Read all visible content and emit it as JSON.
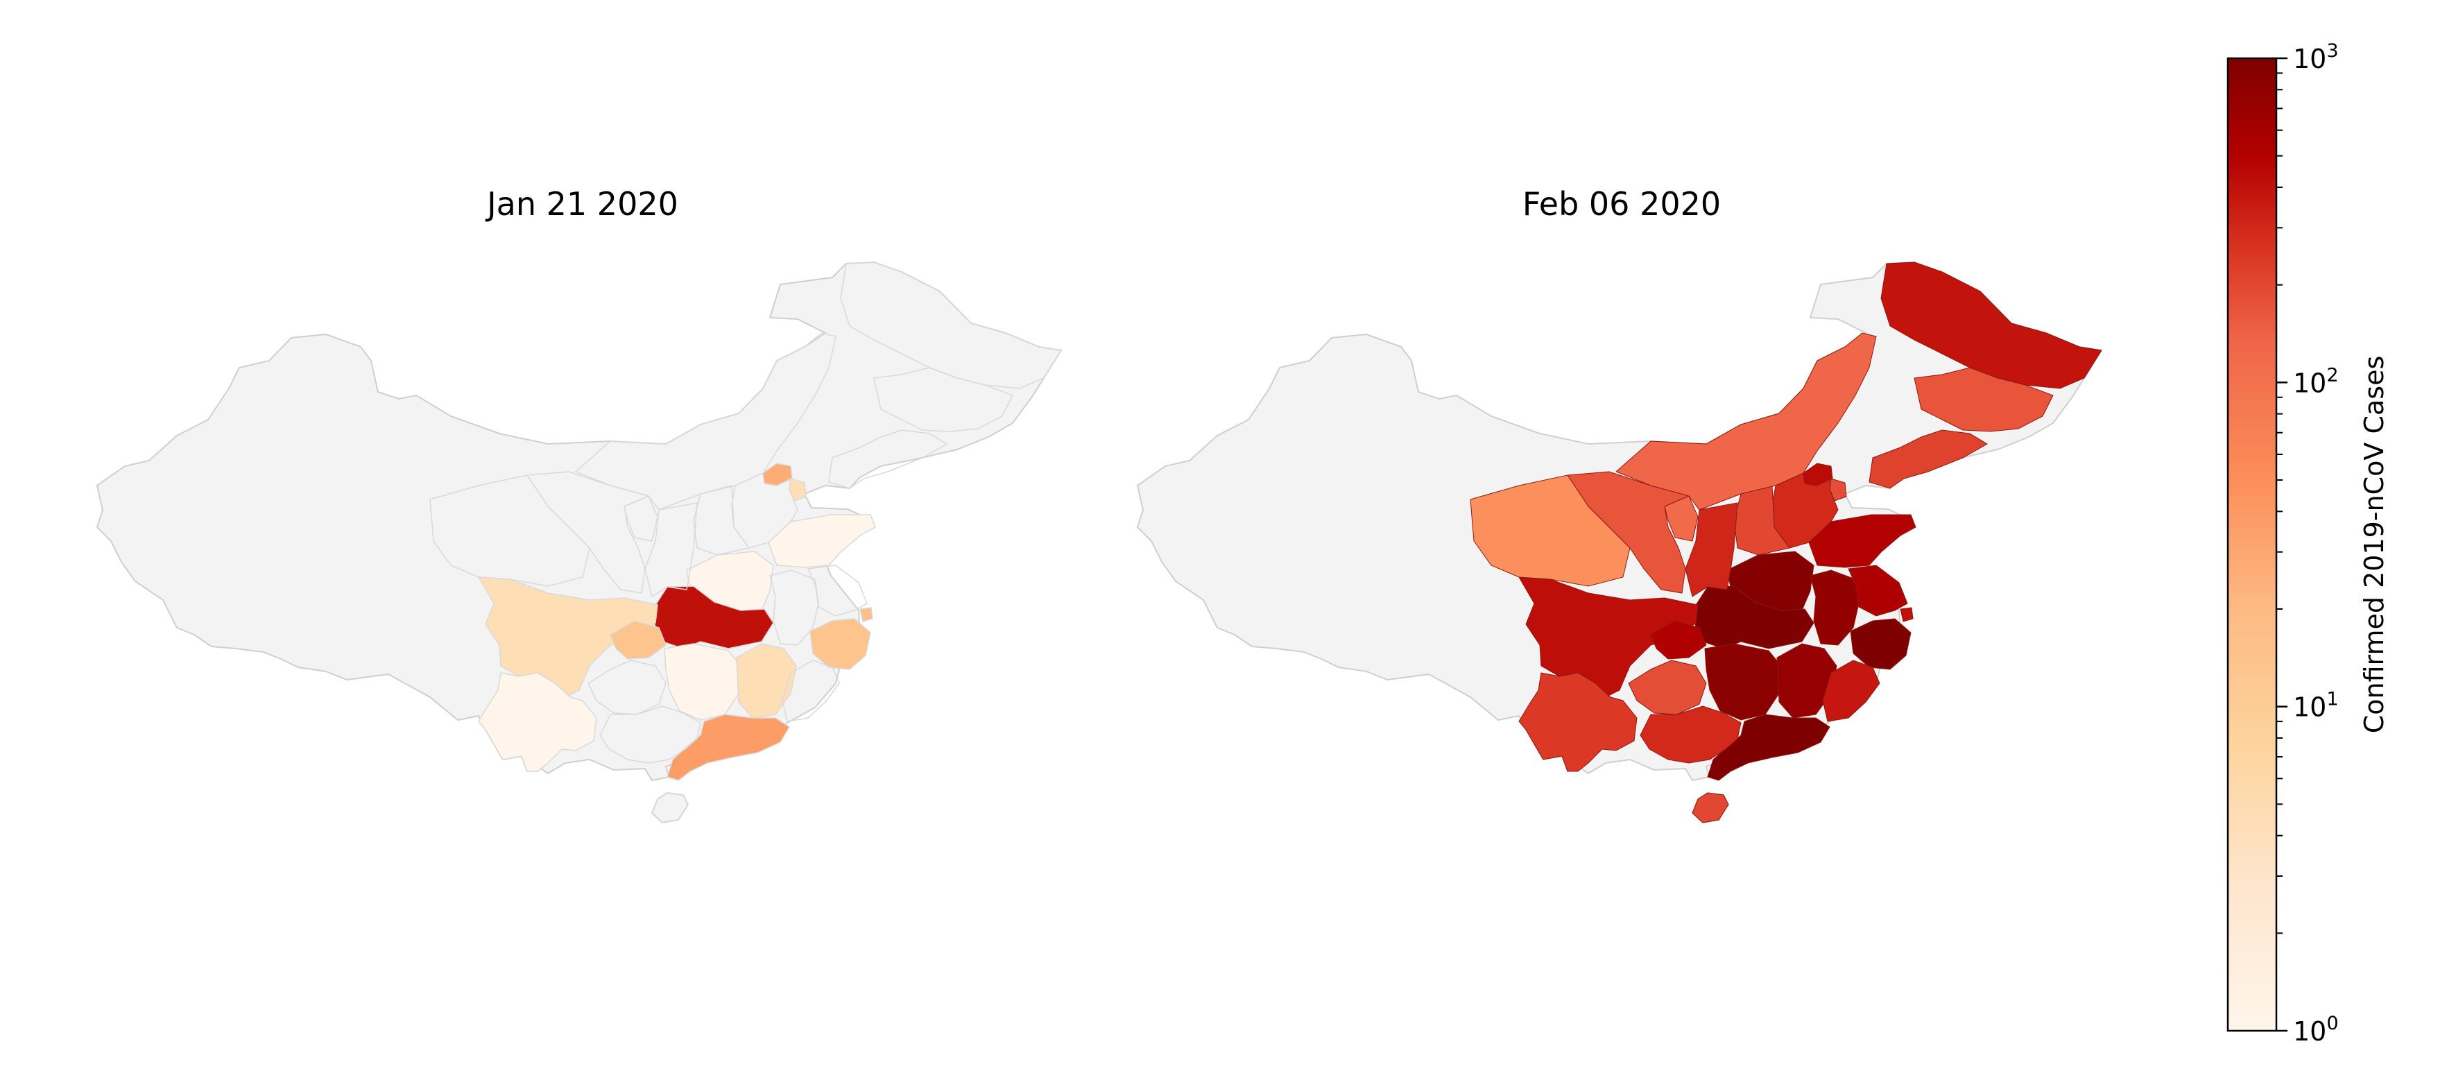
{
  "maps": [
    {
      "title": "Jan 21 2020",
      "regions": {
        "hubei": 270,
        "guangdong": 14,
        "sichuan": 2,
        "chongqing": 5,
        "yunnan": 1,
        "hunan": 1,
        "jiangxi": 2,
        "zhejiang": 5,
        "henan": 1,
        "shandong": 1,
        "anhui": 0,
        "fujian": 0,
        "guangxi": 0,
        "guizhou": 0,
        "jiangsu": 0,
        "shanghai": 6,
        "beijing": 10,
        "tianjin": 2,
        "hebei": 0,
        "shanxi": 0,
        "shaanxi": 0,
        "inner_mongolia": 0,
        "ningxia": 0,
        "gansu": 0,
        "qinghai": 0,
        "xinjiang": 0,
        "tibet": 0,
        "heilongjiang": 0,
        "jilin": 0,
        "liaoning": 0,
        "hainan": 0
      }
    },
    {
      "title": "Feb 06 2020",
      "regions": {
        "hubei": 1000,
        "guangdong": 1000,
        "zhejiang": 1000,
        "henan": 900,
        "hunan": 800,
        "anhui": 700,
        "jiangxi": 650,
        "jiangsu": 400,
        "shandong": 370,
        "chongqing": 390,
        "sichuan": 280,
        "beijing": 300,
        "shanghai": 260,
        "fujian": 230,
        "heilongjiang": 250,
        "shaanxi": 170,
        "guangxi": 160,
        "yunnan": 120,
        "hebei": 160,
        "hainan": 90,
        "shanxi": 90,
        "liaoning": 100,
        "tianjin": 80,
        "guizhou": 80,
        "gansu": 70,
        "jilin": 70,
        "inner_mongolia": 50,
        "ningxia": 45,
        "qinghai": 18,
        "xinjiang": 0,
        "tibet": 0
      }
    }
  ],
  "colorbar": {
    "label": "Confirmed 2019-nCoV Cases",
    "min": 1,
    "max": 1000,
    "scale": "log",
    "tick_base": "10",
    "tick_exponents": [
      "3",
      "2",
      "1",
      "0"
    ]
  },
  "colors": {
    "no_data": "#f3f3f3",
    "border": "#cfcfcf",
    "cmap": [
      "#fff5eb",
      "#fdd49e",
      "#fdbb84",
      "#fc8d59",
      "#ef6548",
      "#d7301f",
      "#b30000",
      "#7f0000"
    ]
  }
}
